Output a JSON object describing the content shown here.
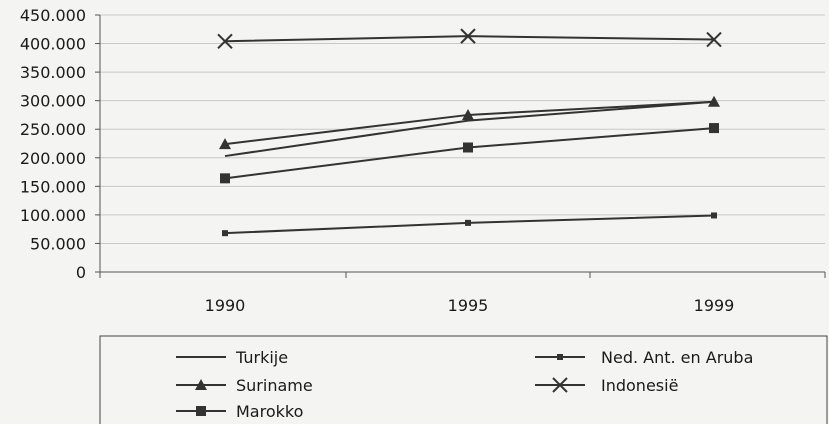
{
  "chart_data": {
    "type": "line",
    "title": "",
    "xlabel": "",
    "ylabel": "",
    "categories": [
      "1990",
      "1995",
      "1999"
    ],
    "ylim": [
      0,
      450000
    ],
    "y_ticks": [
      "0",
      "50.000",
      "100.000",
      "150.000",
      "200.000",
      "250.000",
      "300.000",
      "350.000",
      "400.000",
      "450.000"
    ],
    "grid": true,
    "legend_position": "bottom",
    "series": [
      {
        "name": "Turkije",
        "marker": "none",
        "values": [
          203000,
          265000,
          298000
        ]
      },
      {
        "name": "Suriname",
        "marker": "triangle",
        "values": [
          224000,
          275000,
          298000
        ]
      },
      {
        "name": "Marokko",
        "marker": "square",
        "values": [
          164000,
          218000,
          252000
        ]
      },
      {
        "name": "Ned. Ant. en Aruba",
        "marker": "small-square",
        "values": [
          68000,
          86000,
          99000
        ]
      },
      {
        "name": "Indonesië",
        "marker": "x",
        "values": [
          404000,
          413000,
          407000
        ]
      }
    ],
    "colors": {
      "line": "#333333",
      "grid": "#c8c8c8",
      "axis": "#555555",
      "background": "#f4f4f2"
    }
  }
}
